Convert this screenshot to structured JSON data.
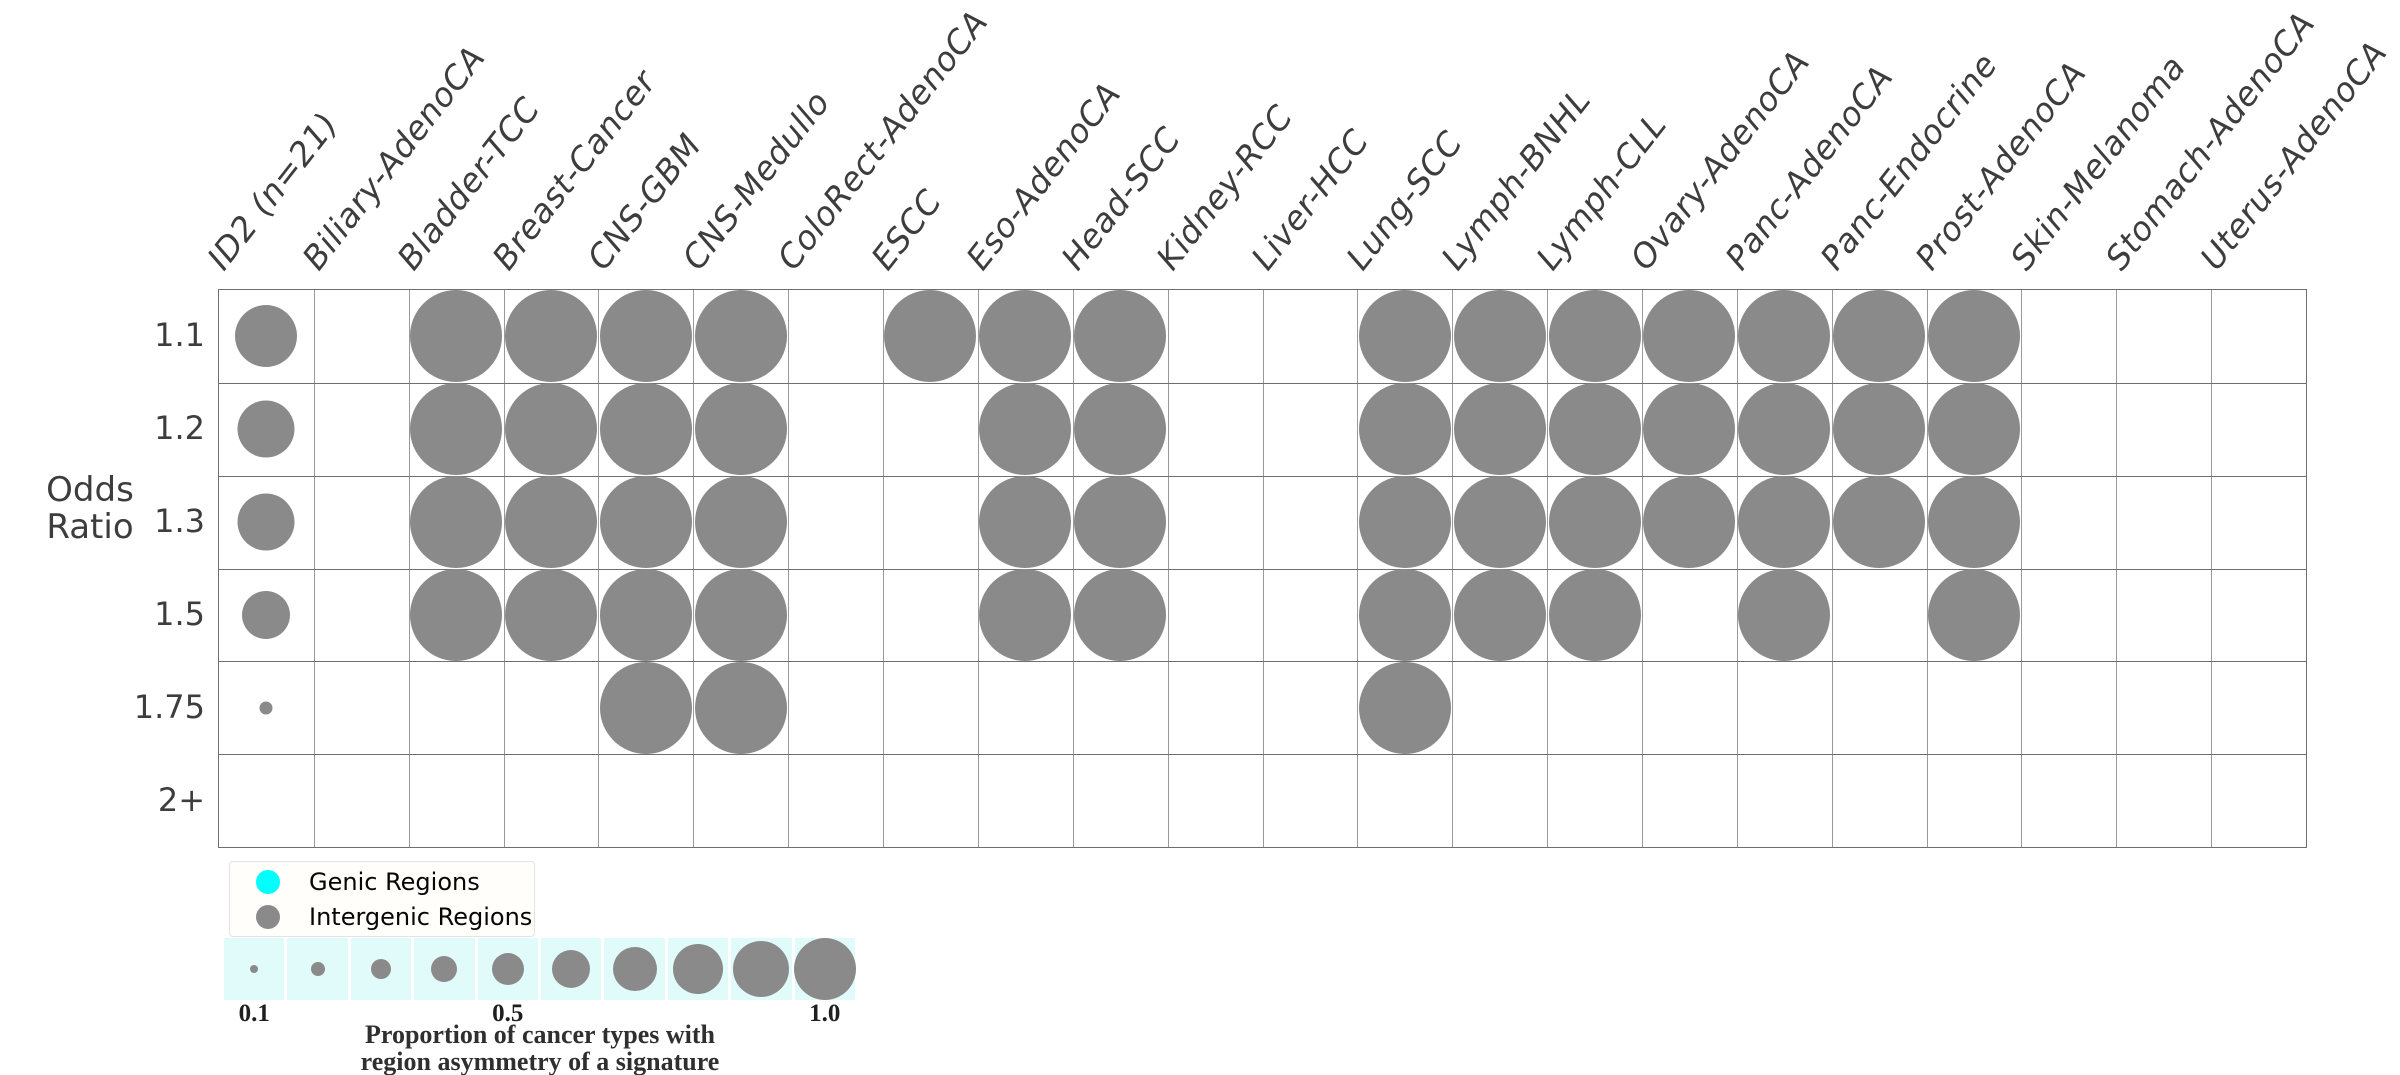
{
  "labels": {
    "y_axis_title_lines": [
      "Odds",
      "Ratio"
    ]
  },
  "legend": {
    "items": [
      {
        "label": "Genic Regions",
        "color": "#00ffff"
      },
      {
        "label": "Intergenic Regions",
        "color": "#8a8a8a"
      }
    ]
  },
  "size_legend": {
    "values": [
      0.1,
      0.2,
      0.3,
      0.4,
      0.5,
      0.6,
      0.7,
      0.8,
      0.9,
      1.0
    ],
    "tick_labels": [
      "0.1",
      "",
      "",
      "",
      "0.5",
      "",
      "",
      "",
      "",
      "1.0"
    ],
    "caption_lines": [
      "Proportion of cancer types with",
      "region asymmetry of a signature"
    ],
    "strip_background": "#e0fbfa"
  },
  "colors": {
    "bubble_gray": "#8a8a8a",
    "genic_cyan": "#00ffff",
    "axis_text": "#3d3d3d",
    "grid_horizontal": "#6f6f6f",
    "grid_vertical": "#9a9a9a"
  },
  "chart_data": {
    "type": "scatter",
    "subtype": "bubble-matrix",
    "title": "",
    "y_axis_label": "Odds Ratio",
    "x_categories": [
      "ID2 (n=21)",
      "Biliary-AdenoCA",
      "Bladder-TCC",
      "Breast-Cancer",
      "CNS-GBM",
      "CNS-Medullo",
      "ColoRect-AdenoCA",
      "ESCC",
      "Eso-AdenoCA",
      "Head-SCC",
      "Kidney-RCC",
      "Liver-HCC",
      "Lung-SCC",
      "Lymph-BNHL",
      "Lymph-CLL",
      "Ovary-AdenoCA",
      "Panc-AdenoCA",
      "Panc-Endocrine",
      "Prost-AdenoCA",
      "Skin-Melanoma",
      "Stomach-AdenoCA",
      "Uterus-AdenoCA"
    ],
    "y_categories": [
      "1.1",
      "1.2",
      "1.3",
      "1.5",
      "1.75",
      "2+"
    ],
    "size_meaning": "Proportion of cancer types with region asymmetry of a signature",
    "size_range_shown": [
      0.1,
      1.0
    ],
    "color_encoding": {
      "Genic Regions": "#00ffff",
      "Intergenic Regions": "#8a8a8a"
    },
    "all_bubbles_region": "Intergenic Regions",
    "series": [
      {
        "odds_ratio": "1.1",
        "proportions": [
          0.67,
          0,
          1,
          1,
          1,
          1,
          0,
          1,
          1,
          1,
          0,
          0,
          1,
          1,
          1,
          1,
          1,
          1,
          1,
          0,
          0,
          0
        ]
      },
      {
        "odds_ratio": "1.2",
        "proportions": [
          0.62,
          0,
          1,
          1,
          1,
          1,
          0,
          0,
          1,
          1,
          0,
          0,
          1,
          1,
          1,
          1,
          1,
          1,
          1,
          0,
          0,
          0
        ]
      },
      {
        "odds_ratio": "1.3",
        "proportions": [
          0.62,
          0,
          1,
          1,
          1,
          1,
          0,
          0,
          1,
          1,
          0,
          0,
          1,
          1,
          1,
          1,
          1,
          1,
          1,
          0,
          0,
          0
        ]
      },
      {
        "odds_ratio": "1.5",
        "proportions": [
          0.52,
          0,
          1,
          1,
          1,
          1,
          0,
          0,
          1,
          1,
          0,
          0,
          1,
          1,
          1,
          0,
          1,
          0,
          1,
          0,
          0,
          0
        ]
      },
      {
        "odds_ratio": "1.75",
        "proportions": [
          0.14,
          0,
          0,
          0,
          1,
          1,
          0,
          0,
          0,
          0,
          0,
          0,
          1,
          0,
          0,
          0,
          0,
          0,
          0,
          0,
          0,
          0
        ]
      },
      {
        "odds_ratio": "2+",
        "proportions": [
          0,
          0,
          0,
          0,
          0,
          0,
          0,
          0,
          0,
          0,
          0,
          0,
          0,
          0,
          0,
          0,
          0,
          0,
          0,
          0,
          0,
          0
        ]
      }
    ]
  }
}
